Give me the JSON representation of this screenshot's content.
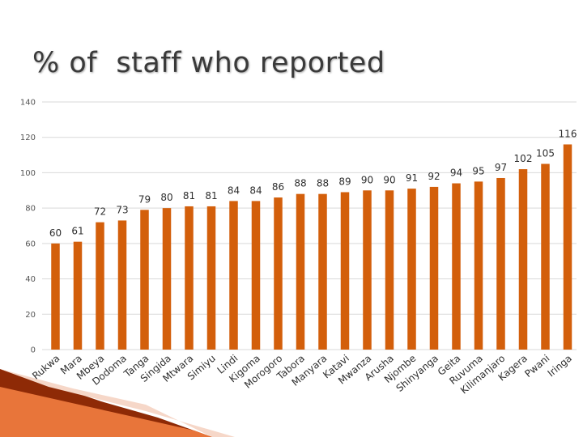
{
  "title": "% of  staff who reported",
  "chart_data": {
    "type": "bar",
    "categories": [
      "Rukwa",
      "Mara",
      "Mbeya",
      "Dodoma",
      "Tanga",
      "Singida",
      "Mtwara",
      "Simiyu",
      "Lindi",
      "Kigoma",
      "Morogoro",
      "Tabora",
      "Manyara",
      "Katavi",
      "Mwanza",
      "Arusha",
      "Njombe",
      "Shinyanga",
      "Geita",
      "Ruvuma",
      "Kilimanjaro",
      "Kagera",
      "Pwani",
      "Iringa"
    ],
    "values": [
      60,
      61,
      72,
      73,
      79,
      80,
      81,
      81,
      84,
      84,
      86,
      88,
      88,
      89,
      90,
      90,
      91,
      92,
      94,
      95,
      97,
      102,
      105,
      116
    ],
    "yticks": [
      0,
      20,
      40,
      60,
      80,
      100,
      120,
      140
    ],
    "ylim": [
      0,
      140
    ],
    "grid": true,
    "legend": "none",
    "colors": {
      "bar": "#D35F0B",
      "grid": "#D9D9D9"
    }
  }
}
